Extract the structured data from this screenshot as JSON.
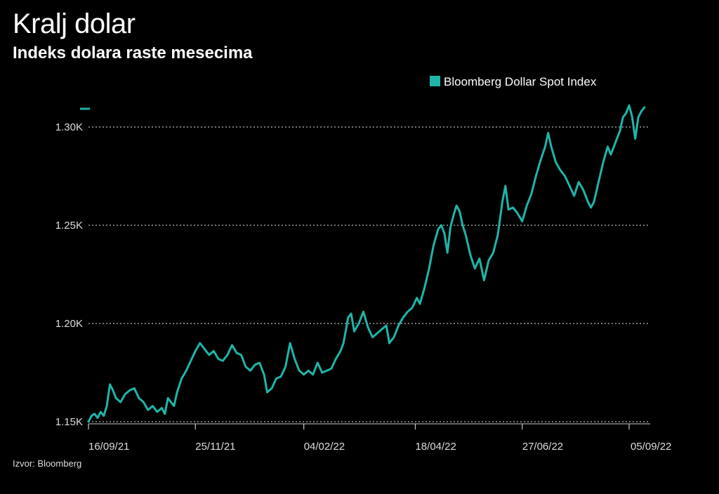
{
  "chart_data": {
    "type": "line",
    "title": "Kralj dolar",
    "subtitle": "Indeks dolara raste mesecima",
    "source": "Izvor: Bloomberg",
    "series": [
      {
        "name": "Bloomberg Dollar Spot Index",
        "color": "#1fb5a8",
        "points": [
          [
            "2021-09-16",
            1150
          ],
          [
            "2021-09-18",
            1153
          ],
          [
            "2021-09-20",
            1154
          ],
          [
            "2021-09-22",
            1152
          ],
          [
            "2021-09-24",
            1155
          ],
          [
            "2021-09-26",
            1153
          ],
          [
            "2021-09-28",
            1158
          ],
          [
            "2021-09-30",
            1169
          ],
          [
            "2021-10-02",
            1166
          ],
          [
            "2021-10-04",
            1162
          ],
          [
            "2021-10-07",
            1160
          ],
          [
            "2021-10-10",
            1164
          ],
          [
            "2021-10-13",
            1166
          ],
          [
            "2021-10-16",
            1167
          ],
          [
            "2021-10-19",
            1162
          ],
          [
            "2021-10-22",
            1160
          ],
          [
            "2021-10-25",
            1156
          ],
          [
            "2021-10-28",
            1158
          ],
          [
            "2021-10-31",
            1155
          ],
          [
            "2021-11-03",
            1157
          ],
          [
            "2021-11-05",
            1154
          ],
          [
            "2021-11-07",
            1162
          ],
          [
            "2021-11-09",
            1160
          ],
          [
            "2021-11-11",
            1158
          ],
          [
            "2021-11-13",
            1165
          ],
          [
            "2021-11-16",
            1172
          ],
          [
            "2021-11-19",
            1176
          ],
          [
            "2021-11-22",
            1181
          ],
          [
            "2021-11-25",
            1186
          ],
          [
            "2021-11-28",
            1190
          ],
          [
            "2021-12-01",
            1187
          ],
          [
            "2021-12-04",
            1184
          ],
          [
            "2021-12-07",
            1186
          ],
          [
            "2021-12-10",
            1182
          ],
          [
            "2021-12-13",
            1181
          ],
          [
            "2021-12-16",
            1184
          ],
          [
            "2021-12-19",
            1189
          ],
          [
            "2021-12-22",
            1185
          ],
          [
            "2021-12-25",
            1184
          ],
          [
            "2021-12-28",
            1178
          ],
          [
            "2021-12-31",
            1176
          ],
          [
            "2022-01-03",
            1179
          ],
          [
            "2022-01-06",
            1180
          ],
          [
            "2022-01-09",
            1174
          ],
          [
            "2022-01-11",
            1165
          ],
          [
            "2022-01-14",
            1167
          ],
          [
            "2022-01-17",
            1172
          ],
          [
            "2022-01-20",
            1173
          ],
          [
            "2022-01-23",
            1178
          ],
          [
            "2022-01-26",
            1190
          ],
          [
            "2022-01-29",
            1182
          ],
          [
            "2022-02-01",
            1176
          ],
          [
            "2022-02-04",
            1174
          ],
          [
            "2022-02-07",
            1176
          ],
          [
            "2022-02-10",
            1174
          ],
          [
            "2022-02-13",
            1180
          ],
          [
            "2022-02-16",
            1175
          ],
          [
            "2022-02-19",
            1176
          ],
          [
            "2022-02-22",
            1177
          ],
          [
            "2022-02-25",
            1182
          ],
          [
            "2022-02-28",
            1186
          ],
          [
            "2022-03-02",
            1190
          ],
          [
            "2022-03-05",
            1203
          ],
          [
            "2022-03-07",
            1205
          ],
          [
            "2022-03-09",
            1196
          ],
          [
            "2022-03-12",
            1200
          ],
          [
            "2022-03-15",
            1206
          ],
          [
            "2022-03-18",
            1198
          ],
          [
            "2022-03-21",
            1193
          ],
          [
            "2022-03-24",
            1195
          ],
          [
            "2022-03-27",
            1197
          ],
          [
            "2022-03-30",
            1199
          ],
          [
            "2022-04-01",
            1190
          ],
          [
            "2022-04-04",
            1193
          ],
          [
            "2022-04-07",
            1199
          ],
          [
            "2022-04-10",
            1203
          ],
          [
            "2022-04-13",
            1206
          ],
          [
            "2022-04-16",
            1208
          ],
          [
            "2022-04-19",
            1213
          ],
          [
            "2022-04-21",
            1210
          ],
          [
            "2022-04-24",
            1218
          ],
          [
            "2022-04-27",
            1228
          ],
          [
            "2022-04-30",
            1240
          ],
          [
            "2022-05-03",
            1248
          ],
          [
            "2022-05-05",
            1250
          ],
          [
            "2022-05-07",
            1246
          ],
          [
            "2022-05-09",
            1236
          ],
          [
            "2022-05-11",
            1249
          ],
          [
            "2022-05-13",
            1255
          ],
          [
            "2022-05-15",
            1260
          ],
          [
            "2022-05-17",
            1257
          ],
          [
            "2022-05-19",
            1250
          ],
          [
            "2022-05-21",
            1245
          ],
          [
            "2022-05-24",
            1235
          ],
          [
            "2022-05-27",
            1228
          ],
          [
            "2022-05-30",
            1233
          ],
          [
            "2022-06-02",
            1222
          ],
          [
            "2022-06-05",
            1232
          ],
          [
            "2022-06-08",
            1236
          ],
          [
            "2022-06-11",
            1245
          ],
          [
            "2022-06-14",
            1262
          ],
          [
            "2022-06-16",
            1270
          ],
          [
            "2022-06-18",
            1258
          ],
          [
            "2022-06-21",
            1259
          ],
          [
            "2022-06-24",
            1256
          ],
          [
            "2022-06-27",
            1252
          ],
          [
            "2022-06-30",
            1260
          ],
          [
            "2022-07-03",
            1266
          ],
          [
            "2022-07-06",
            1275
          ],
          [
            "2022-07-09",
            1283
          ],
          [
            "2022-07-12",
            1290
          ],
          [
            "2022-07-14",
            1297
          ],
          [
            "2022-07-16",
            1290
          ],
          [
            "2022-07-19",
            1282
          ],
          [
            "2022-07-22",
            1278
          ],
          [
            "2022-07-25",
            1275
          ],
          [
            "2022-07-28",
            1270
          ],
          [
            "2022-07-31",
            1265
          ],
          [
            "2022-08-03",
            1272
          ],
          [
            "2022-08-06",
            1268
          ],
          [
            "2022-08-09",
            1262
          ],
          [
            "2022-08-11",
            1259
          ],
          [
            "2022-08-13",
            1262
          ],
          [
            "2022-08-16",
            1272
          ],
          [
            "2022-08-19",
            1282
          ],
          [
            "2022-08-22",
            1290
          ],
          [
            "2022-08-24",
            1286
          ],
          [
            "2022-08-27",
            1292
          ],
          [
            "2022-08-30",
            1298
          ],
          [
            "2022-09-01",
            1305
          ],
          [
            "2022-09-03",
            1307
          ],
          [
            "2022-09-05",
            1311
          ],
          [
            "2022-09-07",
            1305
          ],
          [
            "2022-09-09",
            1294
          ],
          [
            "2022-09-11",
            1305
          ],
          [
            "2022-09-13",
            1308
          ],
          [
            "2022-09-15",
            1310
          ]
        ]
      }
    ],
    "y_ticks": [
      1150,
      1200,
      1250,
      1300
    ],
    "y_tick_labels": [
      "1.15K",
      "1.20K",
      "1.25K",
      "1.30K"
    ],
    "x_ticks": [
      "2021-09-16",
      "2021-11-25",
      "2022-02-04",
      "2022-04-18",
      "2022-06-27",
      "2022-09-05"
    ],
    "x_tick_labels": [
      "16/09/21",
      "25/11/21",
      "04/02/22",
      "18/04/22",
      "27/06/22",
      "05/09/22"
    ],
    "x_range": [
      "2021-09-16",
      "2022-09-15"
    ],
    "ylim": [
      1150,
      1310
    ],
    "grid": "horizontal-dotted",
    "legend_position": "top-right"
  }
}
